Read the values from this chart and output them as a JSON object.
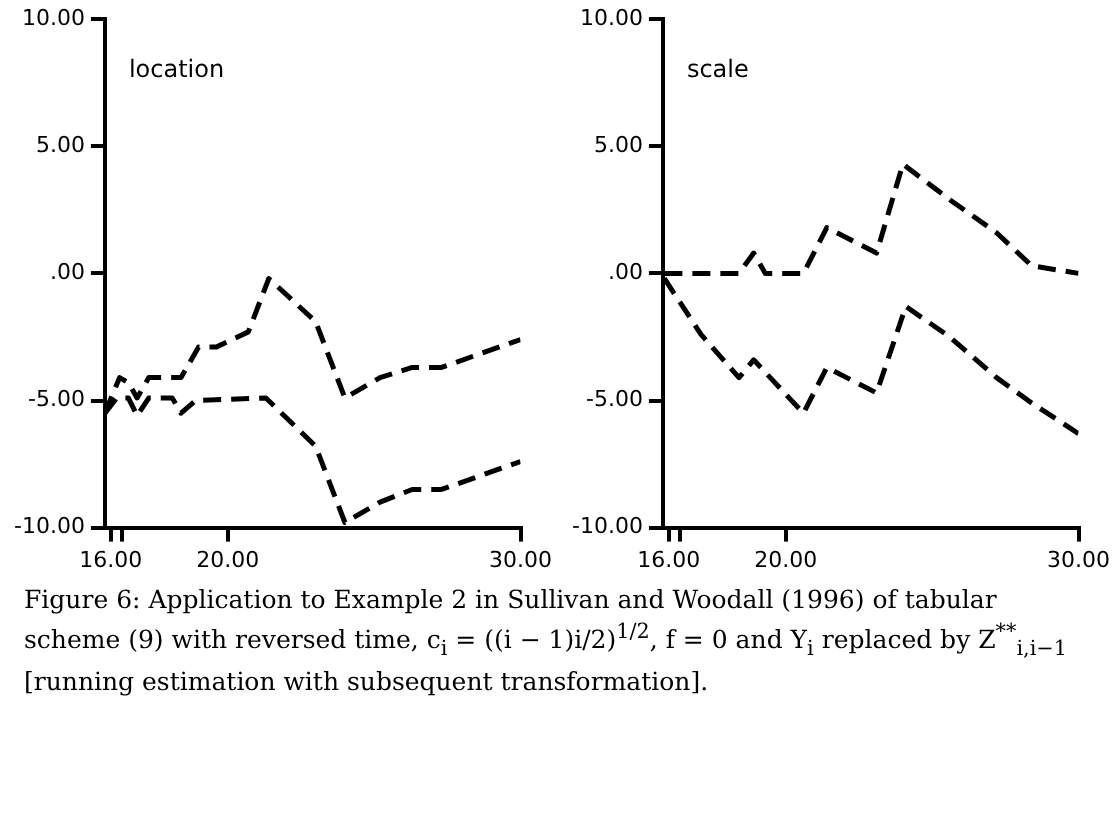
{
  "chart_data": [
    {
      "type": "line",
      "title": "location",
      "xlim": [
        15.8,
        30
      ],
      "xticks": [
        {
          "value": 16,
          "label": "16.00"
        },
        {
          "value": 16.4,
          "label": null
        },
        {
          "value": 20,
          "label": "20.00"
        },
        {
          "value": 30,
          "label": "30.00"
        }
      ],
      "ylim": [
        -10,
        10
      ],
      "yticks": [
        {
          "value": -10,
          "label": "-10.00"
        },
        {
          "value": -5,
          "label": "-5.00"
        },
        {
          "value": 0,
          "label": ".00"
        },
        {
          "value": 5,
          "label": "5.00"
        },
        {
          "value": 10,
          "label": "10.00"
        }
      ],
      "grid": false,
      "legend": false,
      "marker": "none",
      "line_style": "dashed",
      "series": [
        {
          "color": "#000000",
          "x": [
            15.8,
            16.3,
            16.6,
            16.9,
            17.3,
            18.4,
            19.0,
            19.6,
            20.7,
            21.4,
            23.0,
            24.0,
            25.2,
            26.3,
            27.3,
            30.0
          ],
          "values": [
            -5.5,
            -4.1,
            -4.3,
            -4.9,
            -4.1,
            -4.1,
            -2.9,
            -2.9,
            -2.3,
            -0.2,
            -1.9,
            -4.9,
            -4.1,
            -3.7,
            -3.7,
            -2.6
          ]
        },
        {
          "color": "#000000",
          "x": [
            15.8,
            16.2,
            16.6,
            16.9,
            17.3,
            18.1,
            18.4,
            18.9,
            21.3,
            23.0,
            24.0,
            25.2,
            26.3,
            27.3,
            30.0
          ],
          "values": [
            -5.5,
            -4.9,
            -4.9,
            -5.6,
            -4.9,
            -4.9,
            -5.5,
            -5.0,
            -4.9,
            -6.8,
            -9.8,
            -9.0,
            -8.5,
            -8.5,
            -7.4
          ]
        }
      ]
    },
    {
      "type": "line",
      "title": "scale",
      "xlim": [
        15.8,
        30
      ],
      "xticks": [
        {
          "value": 16,
          "label": "16.00"
        },
        {
          "value": 16.4,
          "label": null
        },
        {
          "value": 20,
          "label": "20.00"
        },
        {
          "value": 30,
          "label": "30.00"
        }
      ],
      "ylim": [
        -10,
        10
      ],
      "yticks": [
        {
          "value": -10,
          "label": "-10.00"
        },
        {
          "value": -5,
          "label": "-5.00"
        },
        {
          "value": 0,
          "label": ".00"
        },
        {
          "value": 5,
          "label": "5.00"
        },
        {
          "value": 10,
          "label": "10.00"
        }
      ],
      "grid": false,
      "legend": false,
      "marker": "none",
      "line_style": "dashed",
      "annotations": [
        "Figure 6: Application to Example 2 in Sullivan and Woodall (1996) of tabular scheme (9) with reversed time, c$_{i}$ = ((i − 1)i/2)$^{1/2}$, f = 0 and Y$_{i}$ replaced by Z$^{**}$$_{i,i−1}$ [running estimation with subsequent transformation]."
      ],
      "series": [
        {
          "color": "#000000",
          "x": [
            15.85,
            18.4,
            18.9,
            19.3,
            20.6,
            21.4,
            23.1,
            24.0,
            25.6,
            27.2,
            28.4,
            30.0
          ],
          "values": [
            0,
            0,
            0.8,
            0,
            0,
            1.8,
            0.8,
            4.3,
            2.9,
            1.6,
            0.3,
            0
          ]
        },
        {
          "color": "#000000",
          "x": [
            15.85,
            17.1,
            18.4,
            18.9,
            20.6,
            21.4,
            23.1,
            24.1,
            25.6,
            27.2,
            28.4,
            30.0
          ],
          "values": [
            -0.2,
            -2.4,
            -4.1,
            -3.4,
            -5.5,
            -3.7,
            -4.7,
            -1.3,
            -2.5,
            -4.1,
            -5.1,
            -6.3
          ]
        }
      ]
    }
  ]
}
